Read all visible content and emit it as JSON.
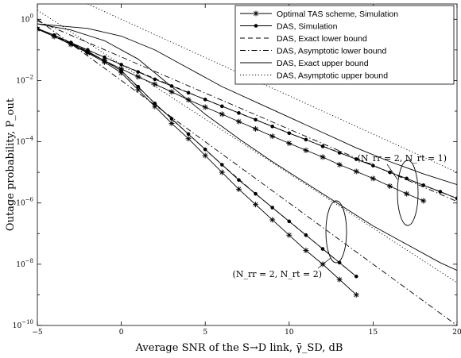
{
  "chart_data": {
    "type": "line",
    "xlabel": "Average SNR of the S→D link, γ̄_SD, dB",
    "ylabel": "Outage probability, P_out",
    "xlim": [
      -5,
      20
    ],
    "ylim_log10": [
      -10,
      0.5
    ],
    "yscale": "log",
    "grid": false,
    "legend_position": "top-right",
    "xticks": [
      -5,
      0,
      5,
      10,
      15,
      20
    ],
    "xtick_labels": [
      "−5",
      "0",
      "5",
      "10",
      "15",
      "20"
    ],
    "yticks_log10": [
      -10,
      -8,
      -6,
      -4,
      -2,
      0
    ],
    "ytick_labels": [
      {
        "base": "10",
        "exp": "−10"
      },
      {
        "base": "10",
        "exp": "−8"
      },
      {
        "base": "10",
        "exp": "−6"
      },
      {
        "base": "10",
        "exp": "−4"
      },
      {
        "base": "10",
        "exp": "−2"
      },
      {
        "base": "10",
        "exp": "0"
      }
    ],
    "legend": [
      {
        "label": "Optimal TAS scheme, Simulation",
        "style": "solid",
        "marker": "star"
      },
      {
        "label": "DAS, Simulation",
        "style": "solid",
        "marker": "dot"
      },
      {
        "label": "DAS, Exact lower bound",
        "style": "dashed",
        "marker": "none"
      },
      {
        "label": "DAS, Asymptotic lower bound",
        "style": "dashdot",
        "marker": "none"
      },
      {
        "label": "DAS, Exact upper bound",
        "style": "solid",
        "marker": "none"
      },
      {
        "label": "DAS, Asymptotic upper bound",
        "style": "dotted",
        "marker": "none"
      }
    ],
    "annotations": [
      {
        "text": "(N_rr = 2, N_rt = 1)",
        "at": [
          17,
          -5.3
        ]
      },
      {
        "text": "(N_rr = 2, N_rt = 2)",
        "at": [
          12,
          -7.3
        ]
      }
    ],
    "series": [
      {
        "legend_index": 0,
        "style": "solid",
        "marker": "star",
        "group": "N_rt=1",
        "x": [
          -5,
          -4,
          -3,
          -2,
          -1,
          0,
          1,
          2,
          3,
          4,
          5,
          6,
          7,
          8,
          9,
          10,
          11,
          12,
          13,
          14,
          15,
          16,
          17,
          18
        ],
        "y_log10": [
          -0.32,
          -0.56,
          -0.82,
          -1.08,
          -1.35,
          -1.62,
          -1.88,
          -2.12,
          -2.37,
          -2.63,
          -2.87,
          -3.1,
          -3.34,
          -3.58,
          -3.82,
          -4.05,
          -4.28,
          -4.5,
          -4.75,
          -4.97,
          -5.2,
          -5.45,
          -5.7,
          -5.93
        ]
      },
      {
        "legend_index": 1,
        "style": "solid",
        "marker": "dot",
        "group": "N_rt=1",
        "x": [
          -5,
          -4,
          -3,
          -2,
          -1,
          0,
          1,
          2,
          3,
          4,
          5,
          6,
          7,
          8,
          9,
          10,
          11,
          12,
          13,
          14,
          15,
          16,
          17,
          18,
          19,
          20
        ],
        "y_log10": [
          -0.3,
          -0.52,
          -0.76,
          -1.0,
          -1.24,
          -1.48,
          -1.72,
          -1.96,
          -2.18,
          -2.4,
          -2.62,
          -2.84,
          -3.06,
          -3.28,
          -3.5,
          -3.72,
          -3.93,
          -4.15,
          -4.36,
          -4.57,
          -4.78,
          -5.0,
          -5.2,
          -5.42,
          -5.63,
          -5.85
        ]
      },
      {
        "legend_index": 2,
        "style": "dashed",
        "marker": "none",
        "group": "N_rt=1",
        "x": [
          -5,
          0,
          5,
          10,
          15,
          20
        ],
        "y_log10": [
          -0.3,
          -1.48,
          -2.62,
          -3.72,
          -4.78,
          -5.85
        ]
      },
      {
        "legend_index": 3,
        "style": "dashdot",
        "marker": "none",
        "group": "N_rt=1",
        "x": [
          -5,
          20
        ],
        "y_log10": [
          -0.05,
          -5.95
        ]
      },
      {
        "legend_index": 4,
        "style": "solid",
        "marker": "none",
        "group": "N_rt=1",
        "x": [
          -5,
          -2,
          0,
          2,
          4,
          6,
          8,
          10,
          12,
          14,
          16,
          18,
          20
        ],
        "y_log10": [
          -0.15,
          -0.3,
          -0.55,
          -1.0,
          -1.6,
          -2.2,
          -2.7,
          -3.2,
          -3.7,
          -4.2,
          -4.65,
          -5.05,
          -5.4
        ]
      },
      {
        "legend_index": 5,
        "style": "dotted",
        "marker": "none",
        "group": "N_rt=1",
        "x": [
          -2,
          20
        ],
        "y_log10": [
          0.5,
          -5.0
        ]
      },
      {
        "legend_index": 0,
        "style": "solid",
        "marker": "star",
        "group": "N_rt=2",
        "x": [
          -5,
          -4,
          -3,
          -2,
          -1,
          0,
          1,
          2,
          3,
          4,
          5,
          6,
          7,
          8,
          9,
          10,
          11,
          12,
          13,
          14
        ],
        "y_log10": [
          -0.32,
          -0.56,
          -0.82,
          -1.1,
          -1.4,
          -1.75,
          -2.3,
          -2.85,
          -3.4,
          -3.9,
          -4.45,
          -5.0,
          -5.55,
          -6.05,
          -6.55,
          -7.05,
          -7.55,
          -8.0,
          -8.5,
          -9.0
        ]
      },
      {
        "legend_index": 1,
        "style": "solid",
        "marker": "dot",
        "group": "N_rt=2",
        "x": [
          -5,
          -4,
          -3,
          -2,
          -1,
          0,
          1,
          2,
          3,
          4,
          5,
          6,
          7,
          8,
          9,
          10,
          11,
          12,
          13,
          14
        ],
        "y_log10": [
          -0.3,
          -0.52,
          -0.78,
          -1.05,
          -1.35,
          -1.68,
          -2.2,
          -2.75,
          -3.25,
          -3.75,
          -4.25,
          -4.75,
          -5.25,
          -5.7,
          -6.15,
          -6.6,
          -7.05,
          -7.5,
          -7.95,
          -8.4
        ]
      },
      {
        "legend_index": 2,
        "style": "dashed",
        "marker": "none",
        "group": "N_rt=2",
        "x": [
          -5,
          -2,
          0,
          2,
          4,
          6,
          8,
          10,
          12,
          14
        ],
        "y_log10": [
          -0.3,
          -1.05,
          -1.68,
          -2.75,
          -3.75,
          -4.75,
          -5.7,
          -6.6,
          -7.5,
          -8.4
        ]
      },
      {
        "legend_index": 3,
        "style": "dashdot",
        "marker": "none",
        "group": "N_rt=2",
        "x": [
          -5,
          20
        ],
        "y_log10": [
          0.0,
          -10.0
        ]
      },
      {
        "legend_index": 4,
        "style": "solid",
        "marker": "none",
        "group": "N_rt=2",
        "x": [
          -5,
          -3,
          -1,
          1,
          3,
          5,
          7,
          9,
          11,
          13,
          15,
          17,
          19,
          20
        ],
        "y_log10": [
          -0.15,
          -0.35,
          -0.7,
          -1.3,
          -2.2,
          -3.1,
          -3.9,
          -4.65,
          -5.35,
          -6.05,
          -6.75,
          -7.35,
          -7.95,
          -8.2
        ]
      },
      {
        "legend_index": 5,
        "style": "dotted",
        "marker": "none",
        "group": "N_rt=2",
        "x": [
          -5,
          20
        ],
        "y_log10": [
          0.3,
          -8.6
        ]
      }
    ]
  }
}
